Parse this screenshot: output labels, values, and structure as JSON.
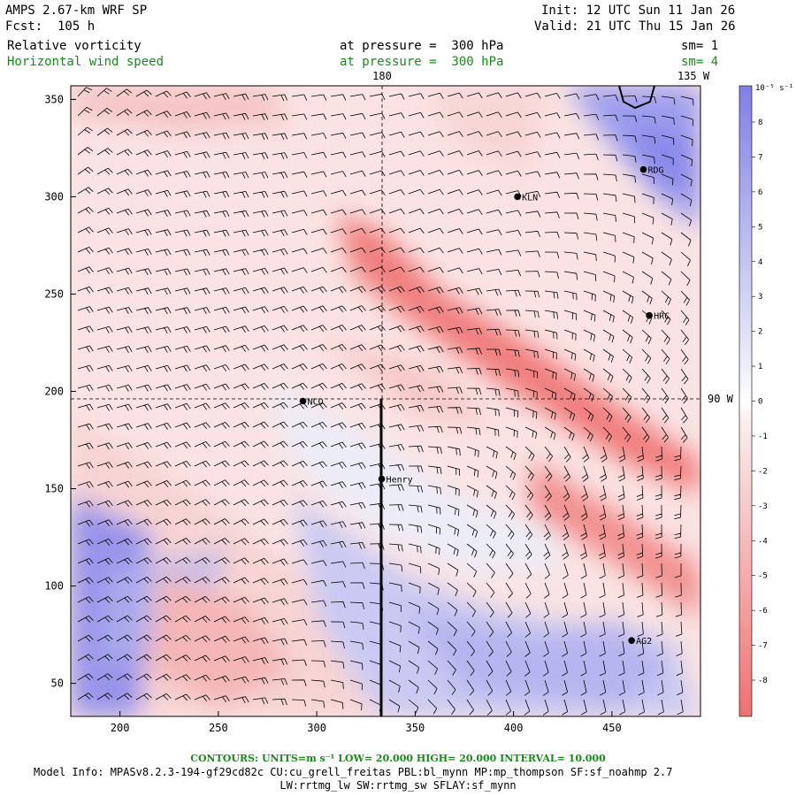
{
  "header": {
    "model": "AMPS 2.67-km WRF SP",
    "fcst": "Fcst:  105 h",
    "init": "Init: 12 UTC Sun 11 Jan 26",
    "valid": "Valid: 21 UTC Thu 15 Jan 26",
    "field1": "Relative vorticity",
    "field1_level": "at pressure =  300 hPa",
    "field1_sm": "sm= 1",
    "field2": "Horizontal wind speed",
    "field2_level": "at pressure =  300 hPa",
    "field2_sm": "sm= 4"
  },
  "map": {
    "x_ticks": [
      "200",
      "250",
      "300",
      "350",
      "400",
      "450"
    ],
    "y_ticks": [
      "50",
      "100",
      "150",
      "200",
      "250",
      "300",
      "350"
    ],
    "x_range": [
      175,
      495
    ],
    "y_range": [
      33,
      357
    ],
    "meridian_label_top": "180",
    "corner_label": "135 W",
    "parallel_label": "90 W",
    "stations": [
      {
        "name": "RDG",
        "x": 466,
        "y": 314
      },
      {
        "name": "KLN",
        "x": 402,
        "y": 300
      },
      {
        "name": "HRC",
        "x": 469,
        "y": 239
      },
      {
        "name": "NCO",
        "x": 293,
        "y": 195
      },
      {
        "name": "Henry",
        "x": 333,
        "y": 155
      },
      {
        "name": "AG2",
        "x": 460,
        "y": 72
      }
    ]
  },
  "colorbar": {
    "unit": "10⁻⁵ s⁻¹",
    "labels": [
      "8",
      "7",
      "6",
      "5",
      "4",
      "3",
      "2",
      "1",
      "0",
      "-1",
      "-2",
      "-3",
      "-4",
      "-5",
      "-6",
      "-7",
      "-8"
    ],
    "positive_color": "#7f7fe8",
    "negative_color": "#f07070"
  },
  "footer": {
    "contours": "CONTOURS:  UNITS=m s⁻¹  LOW=  20.000      HIGH=  20.000      INTERVAL=   10.000",
    "model_info": "Model Info: MPASv8.2.3-194-gf29cd82c CU:cu_grell_freitas PBL:bl_mynn MP:mp_thompson SF:sf_noahmp 2.7",
    "model_info2": "LW:rrtmg_lw SW:rrtmg_sw SFLAY:sf_mynn"
  }
}
